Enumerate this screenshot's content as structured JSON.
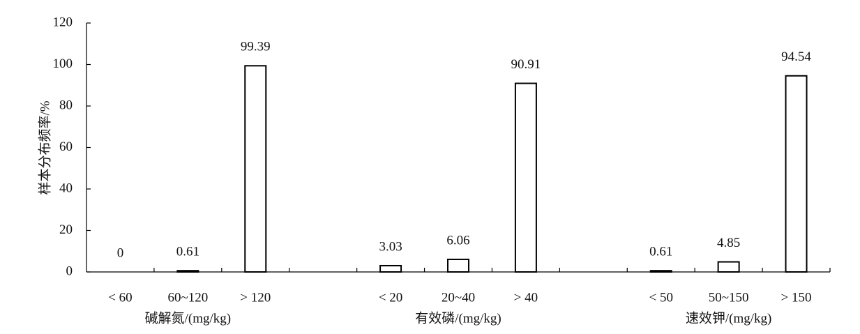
{
  "chart_data": {
    "type": "bar",
    "y_label": "样本分布频率/%",
    "categories": [
      "< 60",
      "60~120",
      "> 120",
      null,
      "< 20",
      "20~40",
      "> 40",
      null,
      "< 50",
      "50~150",
      "> 150"
    ],
    "values": [
      0,
      0.61,
      99.39,
      null,
      3.03,
      6.06,
      90.91,
      null,
      0.61,
      4.85,
      94.54
    ],
    "group_labels": [
      "碱解氮/(mg/kg)",
      "有效磷/(mg/kg)",
      "速效钾/(mg/kg)"
    ],
    "color": "#ffffff",
    "ylim": [
      0,
      120
    ],
    "yticks": [
      0,
      20,
      40,
      60,
      80,
      100,
      120
    ]
  }
}
